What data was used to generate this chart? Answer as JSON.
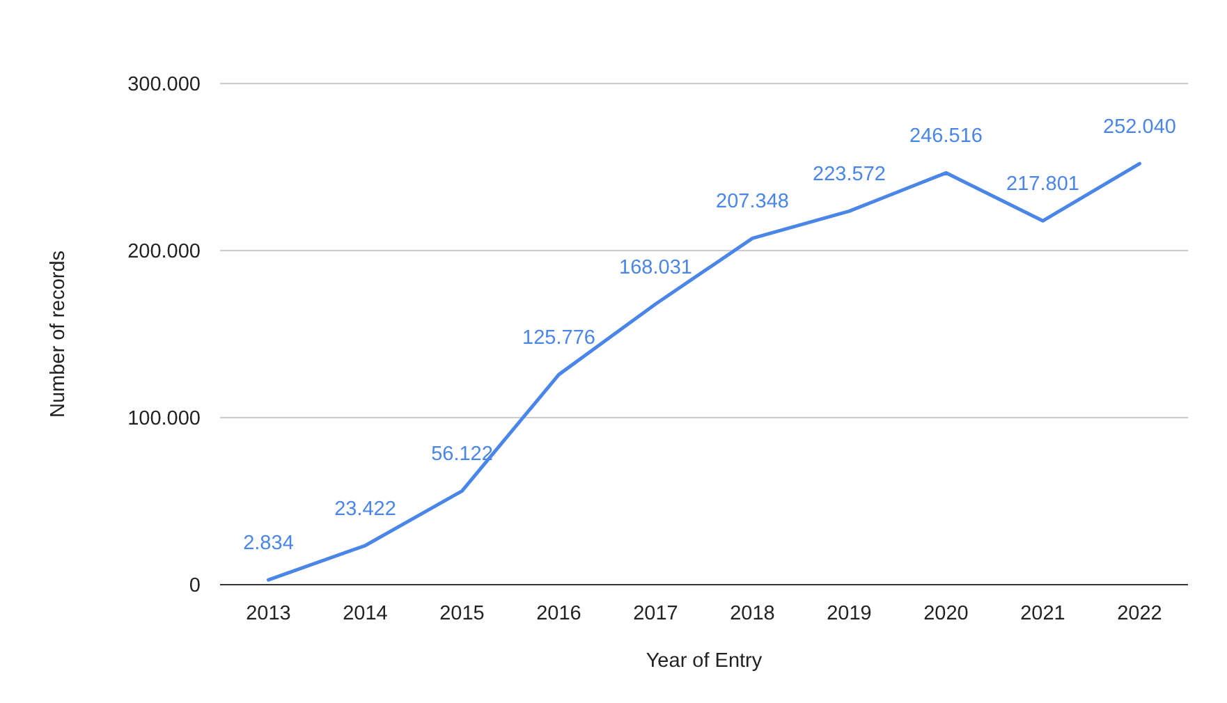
{
  "chart_data": {
    "type": "line",
    "xlabel": "Year of Entry",
    "ylabel": "Number of records",
    "categories": [
      "2013",
      "2014",
      "2015",
      "2016",
      "2017",
      "2018",
      "2019",
      "2020",
      "2021",
      "2022"
    ],
    "series": [
      {
        "color": "#4a86e8",
        "values": [
          2834,
          23422,
          56122,
          125776,
          168031,
          207348,
          223572,
          246516,
          217801,
          252040
        ],
        "value_labels": [
          "2.834",
          "23.422",
          "56.122",
          "125.776",
          "168.031",
          "207.348",
          "223.572",
          "246.516",
          "217.801",
          "252.040"
        ]
      }
    ],
    "ylim": [
      0,
      300000
    ],
    "yticks": [
      {
        "value": 0,
        "label": "0"
      },
      {
        "value": 100000,
        "label": "100.000"
      },
      {
        "value": 200000,
        "label": "200.000"
      },
      {
        "value": 300000,
        "label": "300.000"
      }
    ],
    "grid": "y",
    "marker": "none",
    "line_style": "solid"
  }
}
